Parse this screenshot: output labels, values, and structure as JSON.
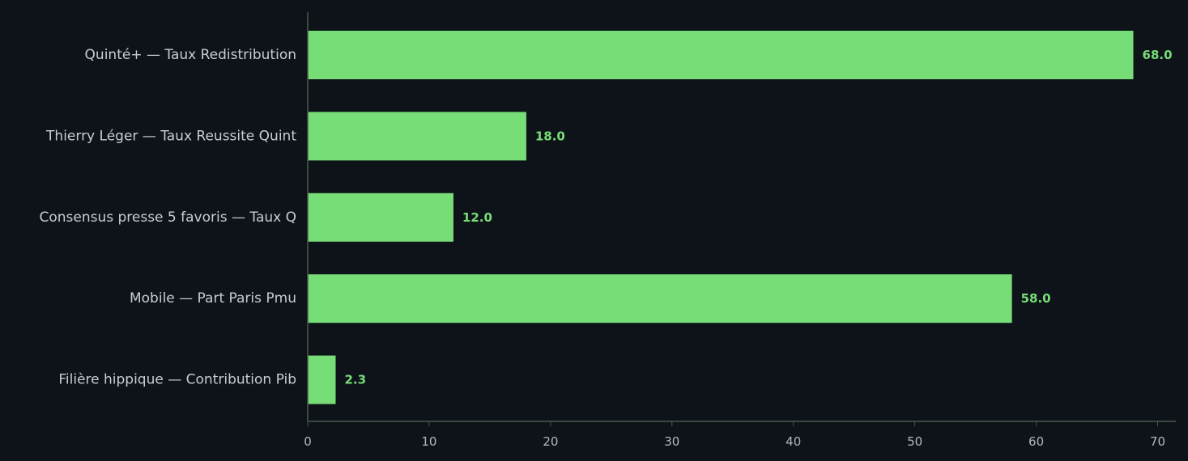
{
  "chart_data": {
    "type": "bar",
    "orientation": "horizontal",
    "title": "",
    "xlabel": "",
    "ylabel": "",
    "categories": [
      "Quinté+ — Taux Redistribution",
      "Thierry Léger — Taux Reussite Quint",
      "Consensus presse 5 favoris — Taux Q",
      "Mobile — Part Paris Pmu",
      "Filière hippique — Contribution Pib"
    ],
    "values": [
      68.0,
      18.0,
      12.0,
      58.0,
      2.3
    ],
    "value_labels": [
      "68.0",
      "18.0",
      "12.0",
      "58.0",
      "2.3"
    ],
    "xlim": [
      0,
      71.5
    ],
    "xticks": [
      0,
      10,
      20,
      30,
      40,
      50,
      60,
      70
    ],
    "grid": false,
    "colors": {
      "background": "#0e131a",
      "bar": "#77dd77",
      "value_label": "#77dd77",
      "axis": "#4a5a4a"
    }
  }
}
